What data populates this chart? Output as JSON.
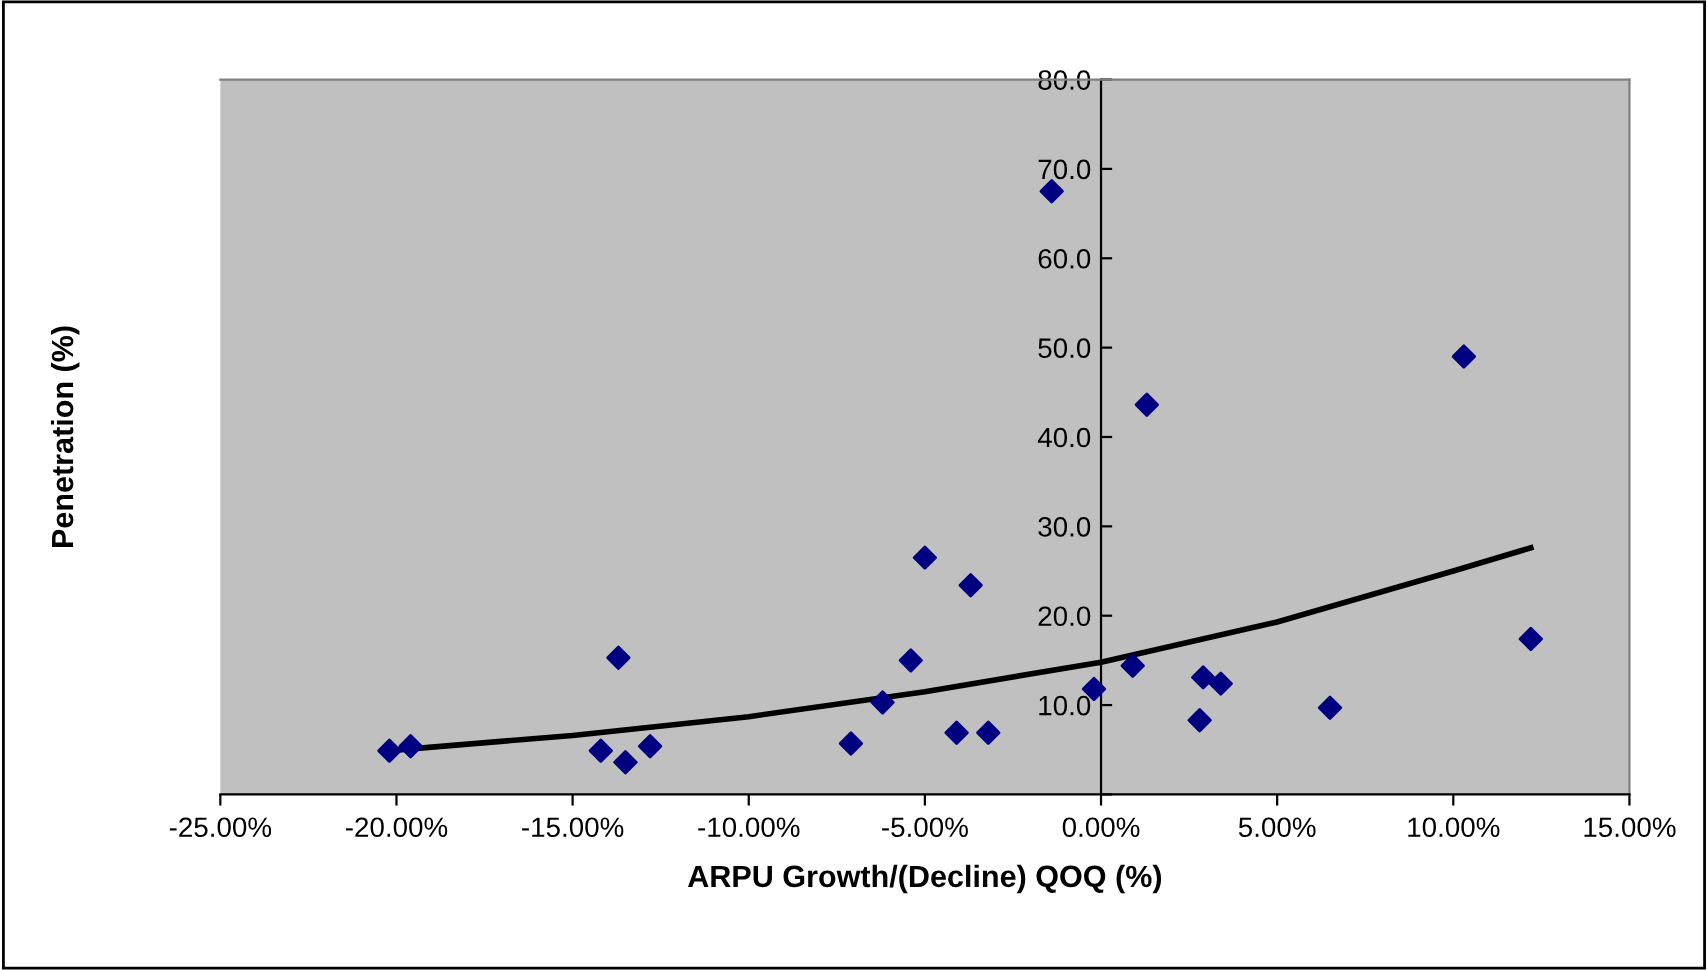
{
  "chart_data": {
    "type": "scatter",
    "xlabel": "ARPU Growth/(Decline) QOQ (%)",
    "ylabel": "Penetration (%)",
    "xlim": [
      -25,
      15
    ],
    "ylim": [
      0,
      80
    ],
    "xticks": [
      {
        "value": -25,
        "label": "-25.00%"
      },
      {
        "value": -20,
        "label": "-20.00%"
      },
      {
        "value": -15,
        "label": "-15.00%"
      },
      {
        "value": -10,
        "label": "-10.00%"
      },
      {
        "value": -5,
        "label": "-5.00%"
      },
      {
        "value": 0,
        "label": "0.00%"
      },
      {
        "value": 5,
        "label": "5.00%"
      },
      {
        "value": 10,
        "label": "10.00%"
      },
      {
        "value": 15,
        "label": "15.00%"
      }
    ],
    "yticks": [
      {
        "value": 0,
        "label": null
      },
      {
        "value": 10,
        "label": "10.0"
      },
      {
        "value": 20,
        "label": "20.0"
      },
      {
        "value": 30,
        "label": "30.0"
      },
      {
        "value": 40,
        "label": "40.0"
      },
      {
        "value": 50,
        "label": "50.0"
      },
      {
        "value": 60,
        "label": "60.0"
      },
      {
        "value": 70,
        "label": "70.0"
      },
      {
        "value": 80,
        "label": "80.0"
      }
    ],
    "grid": false,
    "legend": false,
    "marker": "diamond",
    "series": [
      {
        "color": "#000080",
        "x": [
          -20.2,
          -19.6,
          -14.2,
          -13.7,
          -13.5,
          -12.8,
          -7.1,
          -6.2,
          -5.4,
          -5.0,
          -4.1,
          -3.7,
          -3.2,
          -1.4,
          -0.2,
          0.9,
          1.3,
          2.8,
          2.9,
          3.4,
          6.5,
          10.3,
          12.2
        ],
        "values": [
          4.9,
          5.4,
          4.9,
          15.3,
          3.6,
          5.4,
          5.7,
          10.3,
          15.0,
          26.5,
          6.9,
          23.4,
          6.9,
          67.5,
          11.8,
          14.4,
          43.6,
          8.3,
          13.1,
          12.4,
          9.7,
          49.0,
          17.4
        ]
      },
      {
        "type": "line",
        "color": "#000000",
        "marker": "none",
        "x": [
          -20.2,
          -15,
          -10,
          -5,
          0,
          5,
          10,
          12.2
        ],
        "values": [
          4.9,
          6.6,
          8.7,
          11.5,
          14.8,
          19.3,
          25.0,
          27.6
        ]
      }
    ]
  }
}
